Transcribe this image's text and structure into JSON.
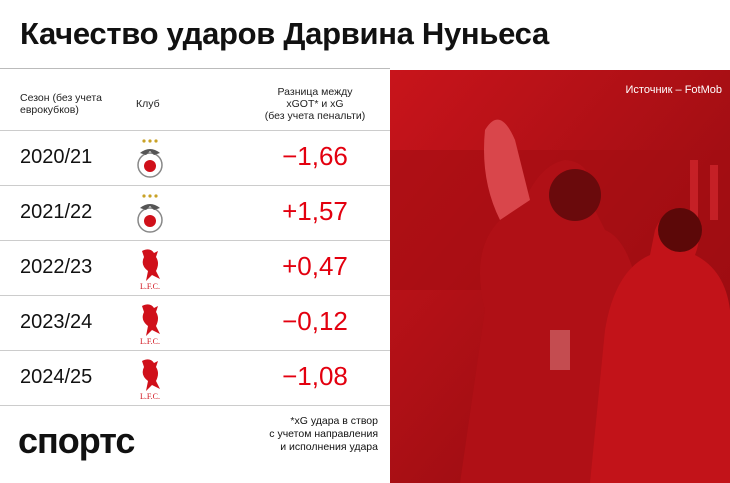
{
  "header": {
    "title": "Качество ударов Дарвина Нуньеса",
    "source": "Источник – FotMob"
  },
  "table": {
    "columns": [
      "Сезон (без учета\nеврокубков)",
      "Клуб",
      "Разница между\nxGOT* и xG\n(без учета пенальти)"
    ],
    "rows": [
      {
        "season": "2020/21",
        "value": "−1,66"
      },
      {
        "season": "2021/22",
        "value": "+1,57"
      },
      {
        "season": "2022/23",
        "logo_text": "L.F.C.",
        "value": "+0,47"
      },
      {
        "season": "2023/24",
        "logo_text": "L.F.C.",
        "value": "−0,12"
      },
      {
        "season": "2024/25",
        "logo_text": "L.F.C.",
        "value": "−1,08"
      }
    ]
  },
  "footer": {
    "brand": "спортс",
    "footnote": "*xG удара в створ\nс учетом направления\nи исполнения удара"
  }
}
